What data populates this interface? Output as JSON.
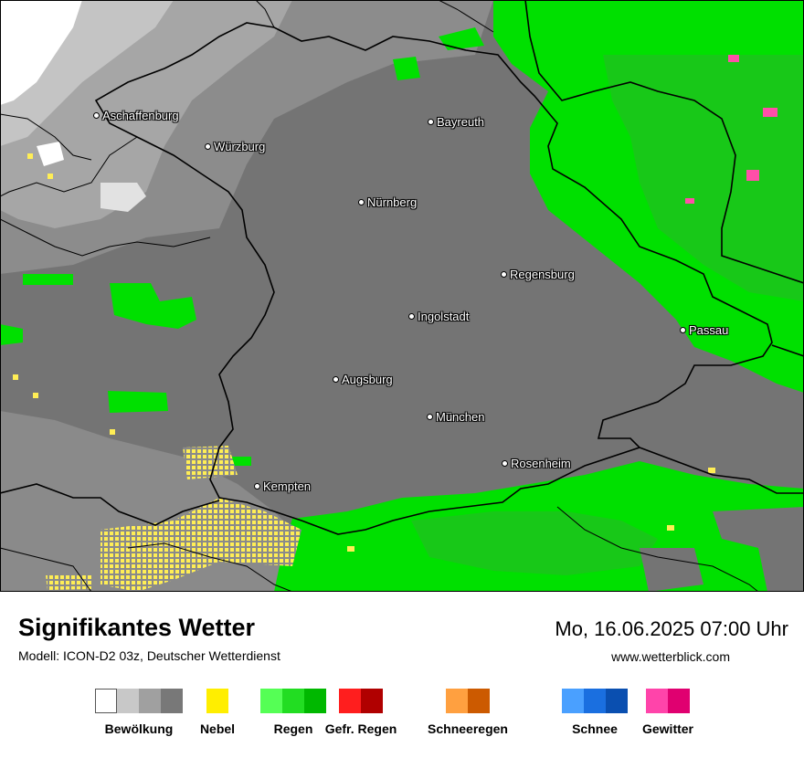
{
  "map": {
    "cities": [
      {
        "name": "Aschaffenburg"
      },
      {
        "name": "Würzburg"
      },
      {
        "name": "Bayreuth"
      },
      {
        "name": "Nürnberg"
      },
      {
        "name": "Regensburg"
      },
      {
        "name": "Ingolstadt"
      },
      {
        "name": "Passau"
      },
      {
        "name": "Augsburg"
      },
      {
        "name": "München"
      },
      {
        "name": "Rosenheim"
      },
      {
        "name": "Kempten"
      }
    ],
    "colors": {
      "cloud_overcast": "#747474",
      "cloud_broken": "#8c8c8c",
      "cloud_scattered": "#bdbdbd",
      "clear": "#ffffff",
      "rain_light": "#00e000",
      "rain_moderate": "#18c818",
      "fog": "#ffee55",
      "thunderstorm": "#ff4fa8"
    }
  },
  "footer": {
    "title": "Signifikantes Wetter",
    "subtitle": "Modell: ICON-D2 03z, Deutscher Wetterdienst",
    "datetime": "Mo, 16.06.2025 07:00 Uhr",
    "website": "www.wetterblick.com"
  },
  "legend": [
    {
      "label": "Bewölkung",
      "colors": [
        "#ffffff",
        "#c8c8c8",
        "#a0a0a0",
        "#787878"
      ]
    },
    {
      "label": "Nebel",
      "colors": [
        "#ffee00"
      ]
    },
    {
      "label": "Regen",
      "colors": [
        "#55ff55",
        "#22dd22",
        "#00b800"
      ]
    },
    {
      "label": "Gefr. Regen",
      "colors": [
        "#ff1e1e",
        "#b00000"
      ]
    },
    {
      "label": "Schneeregen",
      "colors": [
        "#ffa040",
        "#cc5a00"
      ]
    },
    {
      "label": "Schnee",
      "colors": [
        "#4aa0ff",
        "#1a6fe0",
        "#0a4fb0"
      ]
    },
    {
      "label": "Gewitter",
      "colors": [
        "#ff44aa",
        "#e00070"
      ]
    }
  ]
}
